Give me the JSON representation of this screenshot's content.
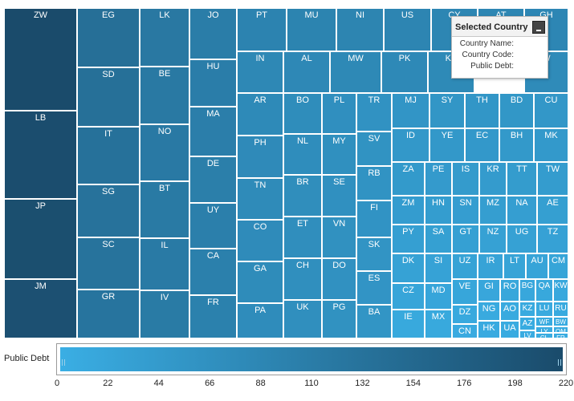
{
  "treemap": {
    "colors": {
      "low": "#3aaee4",
      "high": "#1a4b6b"
    },
    "tiles": [
      {
        "label": "ZW",
        "value": 220
      },
      {
        "label": "LB",
        "value": 215
      },
      {
        "label": "JP",
        "value": 212
      },
      {
        "label": "JM",
        "value": 208
      },
      {
        "label": "EG",
        "value": 140
      },
      {
        "label": "SD",
        "value": 138
      },
      {
        "label": "IT",
        "value": 135
      },
      {
        "label": "SG",
        "value": 133
      },
      {
        "label": "SC",
        "value": 131
      },
      {
        "label": "GR",
        "value": 128
      },
      {
        "label": "LK",
        "value": 120
      },
      {
        "label": "BE",
        "value": 118
      },
      {
        "label": "NO",
        "value": 117
      },
      {
        "label": "BT",
        "value": 116
      },
      {
        "label": "IL",
        "value": 115
      },
      {
        "label": "IV",
        "value": 114
      },
      {
        "label": "JO",
        "value": 110
      },
      {
        "label": "HU",
        "value": 108
      },
      {
        "label": "MA",
        "value": 106
      },
      {
        "label": "DE",
        "value": 105
      },
      {
        "label": "UY",
        "value": 104
      },
      {
        "label": "CA",
        "value": 102
      },
      {
        "label": "FR",
        "value": 100
      },
      {
        "label": "PT",
        "value": 95
      },
      {
        "label": "MU",
        "value": 94
      },
      {
        "label": "NI",
        "value": 92
      },
      {
        "label": "US",
        "value": 91
      },
      {
        "label": "CY",
        "value": 90
      },
      {
        "label": "AT",
        "value": 89
      },
      {
        "label": "GH",
        "value": 88
      },
      {
        "label": "IN",
        "value": 85
      },
      {
        "label": "AL",
        "value": 84
      },
      {
        "label": "MW",
        "value": 83
      },
      {
        "label": "PK",
        "value": 82
      },
      {
        "label": "KE",
        "value": 81
      },
      {
        "label": "W",
        "value": 78
      },
      {
        "label": "AR",
        "value": 80
      },
      {
        "label": "PH",
        "value": 79
      },
      {
        "label": "TN",
        "value": 78
      },
      {
        "label": "CO",
        "value": 77
      },
      {
        "label": "GA",
        "value": 76
      },
      {
        "label": "PA",
        "value": 75
      },
      {
        "label": "BO",
        "value": 74
      },
      {
        "label": "NL",
        "value": 73
      },
      {
        "label": "BR",
        "value": 72
      },
      {
        "label": "ET",
        "value": 71
      },
      {
        "label": "CH",
        "value": 70
      },
      {
        "label": "UK",
        "value": 69
      },
      {
        "label": "PL",
        "value": 68
      },
      {
        "label": "MY",
        "value": 67
      },
      {
        "label": "SE",
        "value": 66
      },
      {
        "label": "VN",
        "value": 65
      },
      {
        "label": "DO",
        "value": 64
      },
      {
        "label": "PG",
        "value": 63
      },
      {
        "label": "TR",
        "value": 62
      },
      {
        "label": "SV",
        "value": 61
      },
      {
        "label": "RB",
        "value": 60
      },
      {
        "label": "FI",
        "value": 59
      },
      {
        "label": "SK",
        "value": 58
      },
      {
        "label": "ES",
        "value": 57
      },
      {
        "label": "BA",
        "value": 56
      },
      {
        "label": "MJ",
        "value": 55
      },
      {
        "label": "SY",
        "value": 54
      },
      {
        "label": "TH",
        "value": 53
      },
      {
        "label": "BD",
        "value": 52
      },
      {
        "label": "CU",
        "value": 51
      },
      {
        "label": "ID",
        "value": 50
      },
      {
        "label": "YE",
        "value": 49
      },
      {
        "label": "EC",
        "value": 48
      },
      {
        "label": "BH",
        "value": 47
      },
      {
        "label": "MK",
        "value": 46
      },
      {
        "label": "ZA",
        "value": 45
      },
      {
        "label": "PE",
        "value": 44
      },
      {
        "label": "IS",
        "value": 43
      },
      {
        "label": "KR",
        "value": 42
      },
      {
        "label": "TT",
        "value": 41
      },
      {
        "label": "TW",
        "value": 40
      },
      {
        "label": "ZM",
        "value": 39
      },
      {
        "label": "HN",
        "value": 38
      },
      {
        "label": "SN",
        "value": 37
      },
      {
        "label": "MZ",
        "value": 36
      },
      {
        "label": "NA",
        "value": 35
      },
      {
        "label": "AE",
        "value": 34
      },
      {
        "label": "PY",
        "value": 33
      },
      {
        "label": "SA",
        "value": 32
      },
      {
        "label": "GT",
        "value": 31
      },
      {
        "label": "NZ",
        "value": 30
      },
      {
        "label": "UG",
        "value": 29
      },
      {
        "label": "TZ",
        "value": 28
      },
      {
        "label": "DK",
        "value": 27
      },
      {
        "label": "SI",
        "value": 26
      },
      {
        "label": "UZ",
        "value": 25
      },
      {
        "label": "IR",
        "value": 24
      },
      {
        "label": "LT",
        "value": 23
      },
      {
        "label": "AU",
        "value": 22
      },
      {
        "label": "CM",
        "value": 21
      },
      {
        "label": "CZ",
        "value": 20
      },
      {
        "label": "MD",
        "value": 19
      },
      {
        "label": "VE",
        "value": 18
      },
      {
        "label": "GI",
        "value": 17
      },
      {
        "label": "RO",
        "value": 16
      },
      {
        "label": "BG",
        "value": 15
      },
      {
        "label": "QA",
        "value": 14
      },
      {
        "label": "KW",
        "value": 13
      },
      {
        "label": "IE",
        "value": 12
      },
      {
        "label": "MX",
        "value": 12
      },
      {
        "label": "DZ",
        "value": 11
      },
      {
        "label": "NG",
        "value": 10
      },
      {
        "label": "AO",
        "value": 10
      },
      {
        "label": "KZ",
        "value": 9
      },
      {
        "label": "LU",
        "value": 9
      },
      {
        "label": "RU",
        "value": 9
      },
      {
        "label": "CN",
        "value": 8
      },
      {
        "label": "HK",
        "value": 8
      },
      {
        "label": "UA",
        "value": 7
      },
      {
        "label": "AZ",
        "value": 7
      },
      {
        "label": "WF",
        "value": 7
      },
      {
        "label": "BW",
        "value": 6
      },
      {
        "label": "LV",
        "value": 6
      },
      {
        "label": "LY",
        "value": 6
      },
      {
        "label": "OM",
        "value": 5
      },
      {
        "label": "CL",
        "value": 5
      },
      {
        "label": "FR",
        "value": 5
      }
    ]
  },
  "panel": {
    "title": "Selected Country",
    "country_name_label": "Country Name:",
    "country_code_label": "Country Code:",
    "public_debt_label": "Public Debt:"
  },
  "legend": {
    "label": "Public Debt",
    "ticks": [
      "0",
      "22",
      "44",
      "66",
      "88",
      "110",
      "132",
      "154",
      "176",
      "198",
      "220"
    ]
  }
}
